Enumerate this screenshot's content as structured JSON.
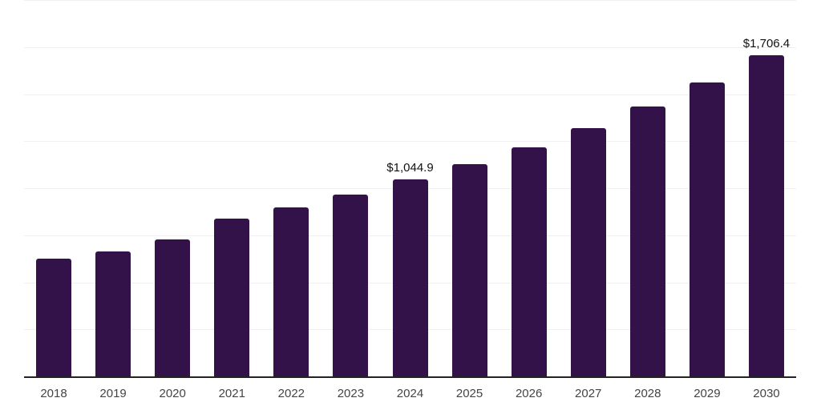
{
  "chart_data": {
    "type": "bar",
    "title": "",
    "xlabel": "",
    "ylabel": "",
    "categories": [
      "2018",
      "2019",
      "2020",
      "2021",
      "2022",
      "2023",
      "2024",
      "2025",
      "2026",
      "2027",
      "2028",
      "2029",
      "2030"
    ],
    "values": [
      626,
      664,
      728,
      839,
      899,
      967,
      1044.9,
      1129,
      1217,
      1320,
      1436,
      1562,
      1706.4
    ],
    "data_labels": [
      {
        "category": "2024",
        "text": "$1,044.9"
      },
      {
        "category": "2030",
        "text": "$1,706.4"
      }
    ],
    "ylim": [
      0,
      2000
    ],
    "gridline_step": 250,
    "grid": true,
    "legend": false,
    "y_tick_labels_visible": false,
    "colors": {
      "bar": "#33124A",
      "axis_line": "#222222",
      "gridline": "#F0F0F2",
      "tick_label": "#444444",
      "data_label": "#111111",
      "background": "#FFFFFF"
    }
  }
}
